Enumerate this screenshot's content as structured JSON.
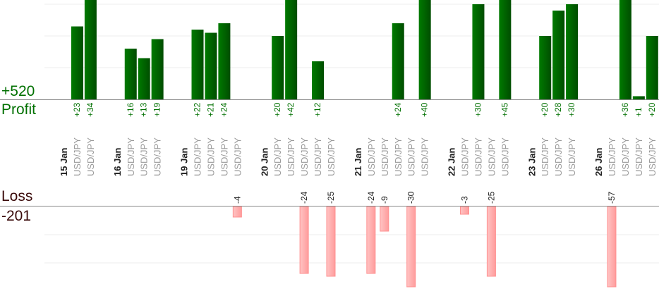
{
  "chart_data": {
    "type": "bar",
    "title": "",
    "profit_total": "+520",
    "profit_label": "Profit",
    "loss_label": "Loss",
    "loss_total": "-201",
    "colors": {
      "profit": "#006400",
      "loss": "#ffaaaa",
      "profit_text": "#007000",
      "loss_text": "#3a0a0a"
    },
    "days": [
      {
        "date": "15 Jan",
        "trades": [
          {
            "pair": "USD/JPY",
            "value": 23
          },
          {
            "pair": "USD/JPY",
            "value": 34
          }
        ]
      },
      {
        "date": "16 Jan",
        "trades": [
          {
            "pair": "USD/JPY",
            "value": 16
          },
          {
            "pair": "USD/JPY",
            "value": 13
          },
          {
            "pair": "USD/JPY",
            "value": 19
          }
        ]
      },
      {
        "date": "19 Jan",
        "trades": [
          {
            "pair": "USD/JPY",
            "value": 22
          },
          {
            "pair": "USD/JPY",
            "value": 21
          },
          {
            "pair": "USD/JPY",
            "value": 24
          },
          {
            "pair": "USD/JPY",
            "value": -4
          }
        ]
      },
      {
        "date": "20 Jan",
        "trades": [
          {
            "pair": "USD/JPY",
            "value": 20
          },
          {
            "pair": "USD/JPY",
            "value": 42
          },
          {
            "pair": "USD/JPY",
            "value": -24
          },
          {
            "pair": "USD/JPY",
            "value": 12
          },
          {
            "pair": "USD/JPY",
            "value": -25
          }
        ]
      },
      {
        "date": "21 Jan",
        "trades": [
          {
            "pair": "USD/JPY",
            "value": -24
          },
          {
            "pair": "USD/JPY",
            "value": -9
          },
          {
            "pair": "USD/JPY",
            "value": 24
          },
          {
            "pair": "USD/JPY",
            "value": -30
          },
          {
            "pair": "USD/JPY",
            "value": 40
          }
        ]
      },
      {
        "date": "22 Jan",
        "trades": [
          {
            "pair": "USD/JPY",
            "value": -3
          },
          {
            "pair": "USD/JPY",
            "value": 30
          },
          {
            "pair": "USD/JPY",
            "value": -25
          },
          {
            "pair": "USD/JPY",
            "value": 45
          }
        ]
      },
      {
        "date": "23 Jan",
        "trades": [
          {
            "pair": "USD/JPY",
            "value": 20
          },
          {
            "pair": "USD/JPY",
            "value": 28
          },
          {
            "pair": "USD/JPY",
            "value": 30
          }
        ]
      },
      {
        "date": "26 Jan",
        "trades": [
          {
            "pair": "USD/JPY",
            "value": -57
          },
          {
            "pair": "USD/JPY",
            "value": 36
          },
          {
            "pair": "USD/JPY",
            "value": 1
          },
          {
            "pair": "USD/JPY",
            "value": 20
          }
        ]
      }
    ]
  }
}
